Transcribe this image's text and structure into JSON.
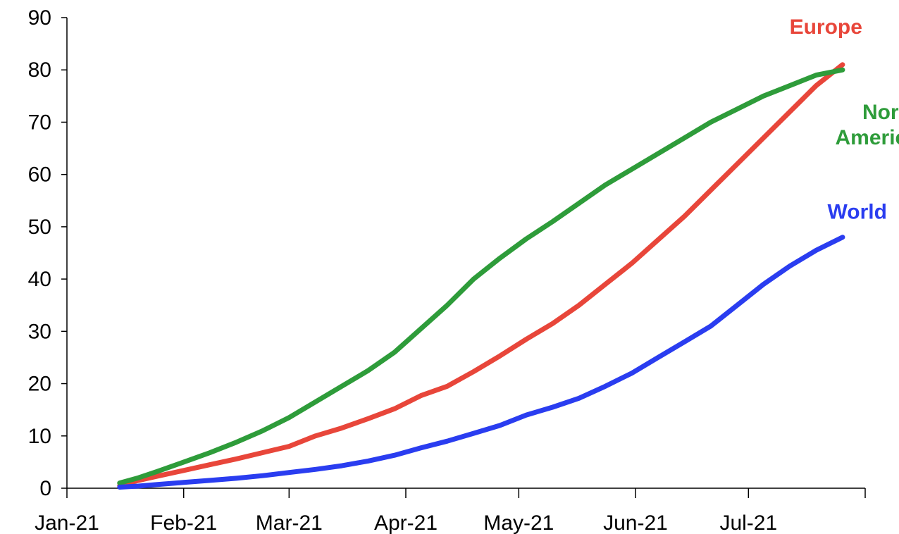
{
  "chart_data": {
    "type": "line",
    "title": "",
    "xlabel": "",
    "ylabel": "",
    "ylim": [
      0,
      90
    ],
    "yticks": [
      0,
      10,
      20,
      30,
      40,
      50,
      60,
      70,
      80,
      90
    ],
    "xlim": [
      "2021-01-01",
      "2021-08-01"
    ],
    "xticks": [
      {
        "date": "2021-01-01",
        "label": "Jan-21"
      },
      {
        "date": "2021-02-01",
        "label": "Feb-21"
      },
      {
        "date": "2021-03-01",
        "label": "Mar-21"
      },
      {
        "date": "2021-04-01",
        "label": "Apr-21"
      },
      {
        "date": "2021-05-01",
        "label": "May-21"
      },
      {
        "date": "2021-06-01",
        "label": "Jun-21"
      },
      {
        "date": "2021-07-01",
        "label": "Jul-21"
      }
    ],
    "grid": false,
    "legend": "none",
    "series": [
      {
        "name": "Europe",
        "color": "#e8463a",
        "points": [
          [
            "2021-01-15",
            0.5
          ],
          [
            "2021-01-20",
            1.5
          ],
          [
            "2021-01-25",
            2.3
          ],
          [
            "2021-02-01",
            3.4
          ],
          [
            "2021-02-08",
            4.5
          ],
          [
            "2021-02-15",
            5.6
          ],
          [
            "2021-02-22",
            6.8
          ],
          [
            "2021-03-01",
            8.0
          ],
          [
            "2021-03-08",
            10.0
          ],
          [
            "2021-03-15",
            11.5
          ],
          [
            "2021-03-22",
            13.3
          ],
          [
            "2021-03-29",
            15.2
          ],
          [
            "2021-04-05",
            17.7
          ],
          [
            "2021-04-12",
            19.5
          ],
          [
            "2021-04-19",
            22.3
          ],
          [
            "2021-04-26",
            25.3
          ],
          [
            "2021-05-03",
            28.5
          ],
          [
            "2021-05-10",
            31.5
          ],
          [
            "2021-05-17",
            35.0
          ],
          [
            "2021-05-24",
            39.0
          ],
          [
            "2021-05-31",
            43.0
          ],
          [
            "2021-06-07",
            47.5
          ],
          [
            "2021-06-14",
            52.0
          ],
          [
            "2021-06-21",
            57.0
          ],
          [
            "2021-06-28",
            62.0
          ],
          [
            "2021-07-05",
            67.0
          ],
          [
            "2021-07-12",
            72.0
          ],
          [
            "2021-07-19",
            77.0
          ],
          [
            "2021-07-26",
            81.0
          ]
        ]
      },
      {
        "name": "North America",
        "color": "#2e9c3a",
        "points": [
          [
            "2021-01-15",
            1.0
          ],
          [
            "2021-01-20",
            2.0
          ],
          [
            "2021-01-25",
            3.2
          ],
          [
            "2021-02-01",
            5.0
          ],
          [
            "2021-02-08",
            6.8
          ],
          [
            "2021-02-15",
            8.8
          ],
          [
            "2021-02-22",
            11.0
          ],
          [
            "2021-03-01",
            13.5
          ],
          [
            "2021-03-08",
            16.5
          ],
          [
            "2021-03-15",
            19.5
          ],
          [
            "2021-03-22",
            22.5
          ],
          [
            "2021-03-29",
            26.0
          ],
          [
            "2021-04-05",
            30.5
          ],
          [
            "2021-04-12",
            35.0
          ],
          [
            "2021-04-19",
            40.0
          ],
          [
            "2021-04-26",
            44.0
          ],
          [
            "2021-05-03",
            47.7
          ],
          [
            "2021-05-10",
            51.0
          ],
          [
            "2021-05-17",
            54.5
          ],
          [
            "2021-05-24",
            58.0
          ],
          [
            "2021-05-31",
            61.0
          ],
          [
            "2021-06-07",
            64.0
          ],
          [
            "2021-06-14",
            67.0
          ],
          [
            "2021-06-21",
            70.0
          ],
          [
            "2021-06-28",
            72.5
          ],
          [
            "2021-07-05",
            75.0
          ],
          [
            "2021-07-12",
            77.0
          ],
          [
            "2021-07-19",
            79.0
          ],
          [
            "2021-07-26",
            80.0
          ]
        ]
      },
      {
        "name": "World",
        "color": "#2a3df0",
        "points": [
          [
            "2021-01-15",
            0.2
          ],
          [
            "2021-01-20",
            0.4
          ],
          [
            "2021-01-25",
            0.7
          ],
          [
            "2021-02-01",
            1.1
          ],
          [
            "2021-02-08",
            1.5
          ],
          [
            "2021-02-15",
            1.9
          ],
          [
            "2021-02-22",
            2.4
          ],
          [
            "2021-03-01",
            3.0
          ],
          [
            "2021-03-08",
            3.6
          ],
          [
            "2021-03-15",
            4.3
          ],
          [
            "2021-03-22",
            5.2
          ],
          [
            "2021-03-29",
            6.3
          ],
          [
            "2021-04-05",
            7.7
          ],
          [
            "2021-04-12",
            9.0
          ],
          [
            "2021-04-19",
            10.5
          ],
          [
            "2021-04-26",
            12.0
          ],
          [
            "2021-05-03",
            14.0
          ],
          [
            "2021-05-10",
            15.5
          ],
          [
            "2021-05-17",
            17.2
          ],
          [
            "2021-05-24",
            19.5
          ],
          [
            "2021-05-31",
            22.0
          ],
          [
            "2021-06-07",
            25.0
          ],
          [
            "2021-06-14",
            28.0
          ],
          [
            "2021-06-21",
            31.0
          ],
          [
            "2021-06-28",
            35.0
          ],
          [
            "2021-07-05",
            39.0
          ],
          [
            "2021-07-12",
            42.5
          ],
          [
            "2021-07-19",
            45.5
          ],
          [
            "2021-07-26",
            48.0
          ]
        ]
      }
    ],
    "annotations": [
      {
        "series": "Europe",
        "lines": [
          "Europe"
        ]
      },
      {
        "series": "North America",
        "lines": [
          "North",
          "America"
        ]
      },
      {
        "series": "World",
        "lines": [
          "World"
        ]
      }
    ]
  }
}
